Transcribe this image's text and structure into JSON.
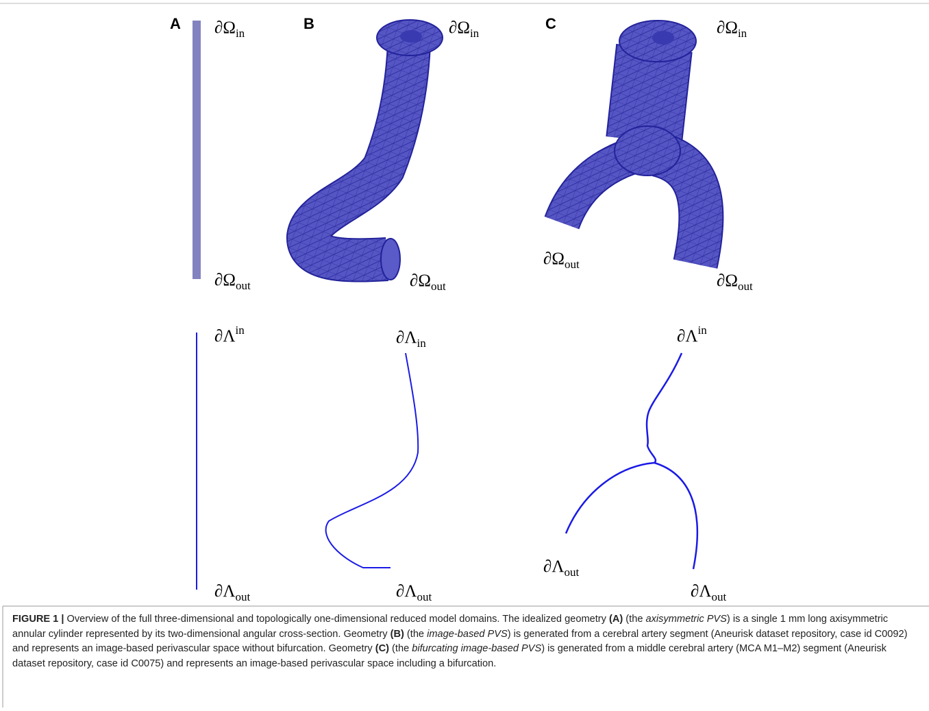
{
  "panels": [
    {
      "label": "A"
    },
    {
      "label": "B"
    },
    {
      "label": "C"
    }
  ],
  "boundary_labels": [
    {
      "base": "∂Ω",
      "sub": "in"
    },
    {
      "base": "∂Ω",
      "sub": "out"
    },
    {
      "base": "∂Ω",
      "sub": "in"
    },
    {
      "base": "∂Ω",
      "sub": "out"
    },
    {
      "base": "∂Ω",
      "sub": "in"
    },
    {
      "base": "∂Ω",
      "sub": "out"
    },
    {
      "base": "∂Ω",
      "sub": "out"
    },
    {
      "base": "∂Λ",
      "sup": "in"
    },
    {
      "base": "∂Λ",
      "sub": "out"
    },
    {
      "base": "∂Λ",
      "sub": "in"
    },
    {
      "base": "∂Λ",
      "sub": "out"
    },
    {
      "base": "∂Λ",
      "sup": "in"
    },
    {
      "base": "∂Λ",
      "sub": "out"
    },
    {
      "base": "∂Λ",
      "sub": "out"
    }
  ],
  "caption": {
    "runs": [
      {
        "text": "FIGURE 1 |",
        "style": "bold"
      },
      {
        "text": " Overview of the full three-dimensional and topologically one-dimensional reduced model domains. The idealized geometry ",
        "style": "normal"
      },
      {
        "text": "(A)",
        "style": "bold"
      },
      {
        "text": " (the ",
        "style": "normal"
      },
      {
        "text": "axisymmetric PVS",
        "style": "italic"
      },
      {
        "text": ") is a single 1 mm long axisymmetric annular cylinder represented by its two-dimensional angular cross-section. Geometry ",
        "style": "normal"
      },
      {
        "text": "(B)",
        "style": "bold"
      },
      {
        "text": " (the ",
        "style": "normal"
      },
      {
        "text": "image-based PVS",
        "style": "italic"
      },
      {
        "text": ") is generated from a cerebral artery segment (Aneurisk dataset repository, case id C0092) and represents an image-based perivascular space without bifurcation. Geometry ",
        "style": "normal"
      },
      {
        "text": "(C)",
        "style": "bold"
      },
      {
        "text": " (the ",
        "style": "normal"
      },
      {
        "text": "bifurcating image-based PVS",
        "style": "italic"
      },
      {
        "text": ") is generated from a middle cerebral artery (MCA M1–M2) segment (Aneurisk dataset repository, case id C0075) and represents an image-based perivascular space including a bifurcation.",
        "style": "normal"
      }
    ]
  }
}
